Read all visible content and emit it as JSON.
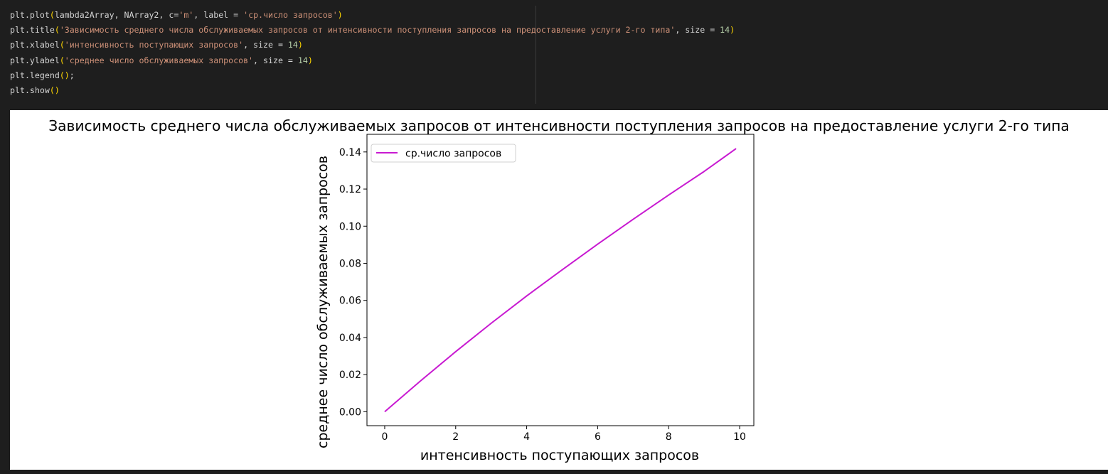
{
  "code": {
    "lines": [
      [
        {
          "t": "plt.plot",
          "c": "fn"
        },
        {
          "t": "(",
          "c": "par"
        },
        {
          "t": "lambda2Array, NArray2, c=",
          "c": "fn"
        },
        {
          "t": "'m'",
          "c": "str"
        },
        {
          "t": ", label = ",
          "c": "fn"
        },
        {
          "t": "'ср.число запросов'",
          "c": "str"
        },
        {
          "t": ")",
          "c": "par"
        }
      ],
      [
        {
          "t": "plt.title",
          "c": "fn"
        },
        {
          "t": "(",
          "c": "par"
        },
        {
          "t": "'Зависимость среднего числа обслуживаемых запросов от интенсивности поступления запросов на предоставление услуги 2-го типа'",
          "c": "str"
        },
        {
          "t": ", size = ",
          "c": "fn"
        },
        {
          "t": "14",
          "c": "num"
        },
        {
          "t": ")",
          "c": "par"
        }
      ],
      [
        {
          "t": "plt.xlabel",
          "c": "fn"
        },
        {
          "t": "(",
          "c": "par"
        },
        {
          "t": "'интенсивность поступающих запросов'",
          "c": "str"
        },
        {
          "t": ", size = ",
          "c": "fn"
        },
        {
          "t": "14",
          "c": "num"
        },
        {
          "t": ")",
          "c": "par"
        }
      ],
      [
        {
          "t": "plt.ylabel",
          "c": "fn"
        },
        {
          "t": "(",
          "c": "par"
        },
        {
          "t": "'среднее число обслуживаемых запросов'",
          "c": "str"
        },
        {
          "t": ", size = ",
          "c": "fn"
        },
        {
          "t": "14",
          "c": "num"
        },
        {
          "t": ")",
          "c": "par"
        }
      ],
      [
        {
          "t": "plt.legend",
          "c": "fn"
        },
        {
          "t": "()",
          "c": "par"
        },
        {
          "t": ";",
          "c": "fn"
        }
      ],
      [
        {
          "t": "plt.show",
          "c": "fn"
        },
        {
          "t": "()",
          "c": "par"
        }
      ]
    ]
  },
  "colors": {
    "line": "#c81ad1",
    "code_bg": "#1e1e1e",
    "string": "#ce9178",
    "number": "#b5cea8",
    "paren": "#ffd700"
  },
  "chart_data": {
    "type": "line",
    "title": "Зависимость среднего числа обслуживаемых запросов от интенсивности поступления запросов на предоставление услуги 2-го типа",
    "xlabel": "интенсивность поступающих запросов",
    "ylabel": "среднее число обслуживаемых запросов",
    "xlim": [
      -0.5,
      10.4
    ],
    "ylim": [
      -0.0075,
      0.1495
    ],
    "xticks": [
      0,
      2,
      4,
      6,
      8,
      10
    ],
    "xtick_labels": [
      "0",
      "2",
      "4",
      "6",
      "8",
      "10"
    ],
    "yticks": [
      0.0,
      0.02,
      0.04,
      0.06,
      0.08,
      0.1,
      0.12,
      0.14
    ],
    "ytick_labels": [
      "0.00",
      "0.02",
      "0.04",
      "0.06",
      "0.08",
      "0.10",
      "0.12",
      "0.14"
    ],
    "grid": false,
    "legend": "upper-left",
    "series": [
      {
        "name": "ср.число запросов",
        "color": "#c81ad1",
        "x": [
          0,
          1,
          2,
          3,
          4,
          5,
          6,
          7,
          8,
          9,
          9.9
        ],
        "y": [
          0.0,
          0.0165,
          0.0324,
          0.0477,
          0.0624,
          0.0765,
          0.0903,
          0.1037,
          0.1168,
          0.1295,
          0.1418
        ]
      }
    ]
  }
}
